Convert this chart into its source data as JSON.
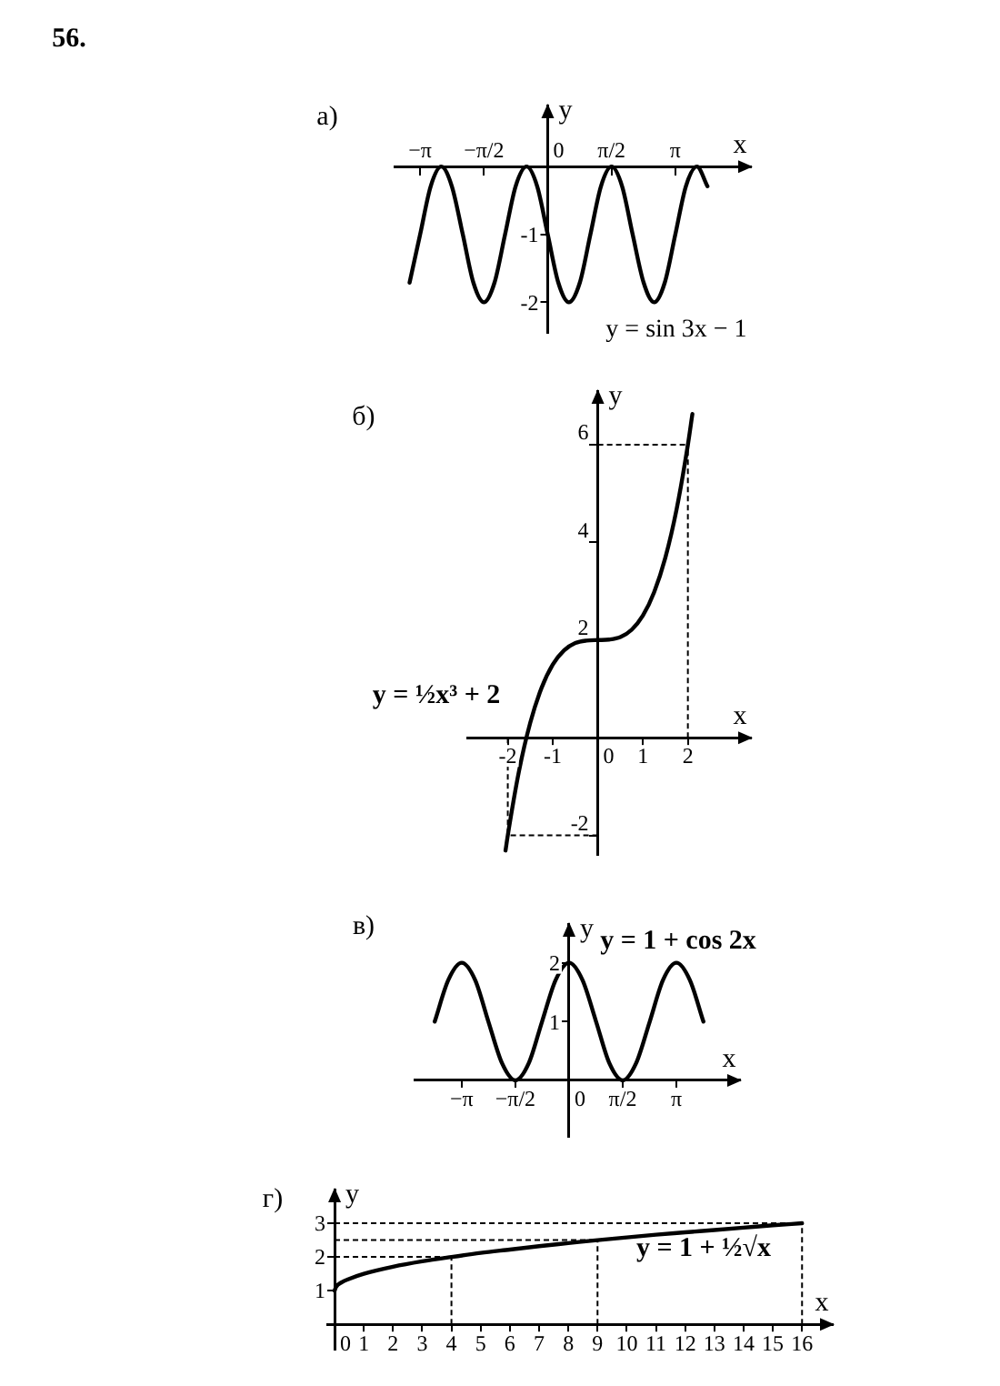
{
  "chart_data": [
    {
      "type": "line",
      "title": "а)",
      "xlabel": "x",
      "ylabel": "y",
      "annotations": [
        "56.",
        "y = sin 3x − 1"
      ],
      "xlim": [
        -3.77,
        5.0
      ],
      "ylim": [
        -2.45,
        0.9
      ],
      "xticks": [
        {
          "value": -3.14,
          "label": "−π"
        },
        {
          "value": -1.57,
          "label": "−π/2"
        },
        {
          "value": 0,
          "label": "0"
        },
        {
          "value": 1.57,
          "label": "π/2"
        },
        {
          "value": 3.14,
          "label": "π"
        }
      ],
      "yticks": [
        -2,
        -1
      ],
      "series": [
        {
          "color": "#000000",
          "x": [
            -3.4,
            -3.14,
            -2.88,
            -2.62,
            -2.36,
            -2.09,
            -1.83,
            -1.57,
            -1.31,
            -1.05,
            -0.79,
            -0.52,
            -0.26,
            0,
            0.26,
            0.52,
            0.79,
            1.05,
            1.31,
            1.57,
            1.83,
            2.09,
            2.36,
            2.62,
            2.88,
            3.14,
            3.4,
            3.67,
            3.93
          ],
          "values": [
            -1.71,
            -1,
            -0.29,
            0,
            -0.29,
            -1,
            -1.71,
            -2,
            -1.71,
            -1,
            -0.29,
            0,
            -0.29,
            -1,
            -1.71,
            -2,
            -1.71,
            -1,
            -0.29,
            0,
            -0.29,
            -1,
            -1.71,
            -2,
            -1.71,
            -1,
            -0.29,
            0,
            -0.29
          ]
        }
      ]
    },
    {
      "type": "line",
      "title": "б)",
      "xlabel": "x",
      "ylabel": "y",
      "annotations": [
        "y = ½x³ + 2"
      ],
      "xlim": [
        -2.9,
        3.4
      ],
      "ylim": [
        -2.4,
        7.1
      ],
      "xticks": [
        -2,
        -1,
        0,
        1,
        2
      ],
      "yticks": [
        -2,
        2,
        4,
        6
      ],
      "ref_lines": [
        {
          "axis": "x",
          "value": -2,
          "line_style": "dashed"
        },
        {
          "axis": "y",
          "value": -2,
          "line_style": "dashed"
        },
        {
          "axis": "x",
          "value": 2,
          "line_style": "dashed"
        },
        {
          "axis": "y",
          "value": 6,
          "line_style": "dashed"
        }
      ],
      "series": [
        {
          "color": "#000000",
          "x": [
            -2.05,
            -2,
            -1.75,
            -1.5,
            -1.25,
            -1,
            -0.75,
            -0.5,
            -0.25,
            0,
            0.25,
            0.5,
            0.75,
            1,
            1.25,
            1.5,
            1.75,
            2,
            2.1
          ],
          "values": [
            -2.31,
            -2,
            -0.68,
            0.31,
            1.02,
            1.5,
            1.79,
            1.94,
            1.99,
            2,
            2.01,
            2.06,
            2.21,
            2.5,
            2.98,
            3.69,
            4.68,
            6,
            6.63
          ]
        }
      ]
    },
    {
      "type": "line",
      "title": "в)",
      "xlabel": "x",
      "ylabel": "y",
      "annotations": [
        "y = 1 + cos 2x"
      ],
      "xlim": [
        -4.52,
        5.0
      ],
      "ylim": [
        -0.96,
        2.66
      ],
      "xticks": [
        {
          "value": -3.14,
          "label": "−π"
        },
        {
          "value": -1.57,
          "label": "−π/2"
        },
        {
          "value": 0,
          "label": "0"
        },
        {
          "value": 1.57,
          "label": "π/2"
        },
        {
          "value": 3.14,
          "label": "π"
        }
      ],
      "yticks": [
        1,
        2
      ],
      "series": [
        {
          "color": "#000000",
          "x": [
            -3.93,
            -3.53,
            -3.14,
            -2.75,
            -2.36,
            -1.96,
            -1.57,
            -1.18,
            -0.79,
            -0.39,
            0,
            0.39,
            0.79,
            1.18,
            1.57,
            1.96,
            2.36,
            2.75,
            3.14,
            3.53,
            3.93
          ],
          "values": [
            1,
            1.71,
            2,
            1.71,
            1,
            0.29,
            0,
            0.29,
            1,
            1.71,
            2,
            1.71,
            1,
            0.29,
            0,
            0.29,
            1,
            1.71,
            2,
            1.71,
            1
          ]
        }
      ]
    },
    {
      "type": "line",
      "title": "г)",
      "xlabel": "x",
      "ylabel": "y",
      "annotations": [
        "y = 1 + ½√x"
      ],
      "xlim": [
        -0.25,
        17.05
      ],
      "ylim": [
        -0.75,
        4.0
      ],
      "xticks": [
        0,
        1,
        2,
        3,
        4,
        5,
        6,
        7,
        8,
        9,
        10,
        11,
        12,
        13,
        14,
        15,
        16
      ],
      "yticks": [
        1,
        2,
        3
      ],
      "ref_lines": [
        {
          "axis": "x",
          "value": 4,
          "line_style": "dashed"
        },
        {
          "axis": "y",
          "value": 2,
          "line_style": "dashed"
        },
        {
          "axis": "x",
          "value": 9,
          "line_style": "dashed"
        },
        {
          "axis": "y",
          "value": 2.5,
          "line_style": "dashed"
        },
        {
          "axis": "x",
          "value": 16,
          "line_style": "dashed"
        },
        {
          "axis": "y",
          "value": 3,
          "line_style": "dashed"
        }
      ],
      "series": [
        {
          "color": "#000000",
          "x": [
            0,
            0.05,
            0.25,
            0.5,
            1,
            2,
            3,
            4,
            5,
            6,
            7,
            8,
            9,
            10,
            11,
            12,
            13,
            14,
            15,
            16
          ],
          "values": [
            1,
            1.11,
            1.25,
            1.35,
            1.5,
            1.71,
            1.87,
            2,
            2.12,
            2.22,
            2.32,
            2.41,
            2.5,
            2.58,
            2.66,
            2.73,
            2.8,
            2.87,
            2.94,
            3
          ]
        }
      ]
    }
  ]
}
